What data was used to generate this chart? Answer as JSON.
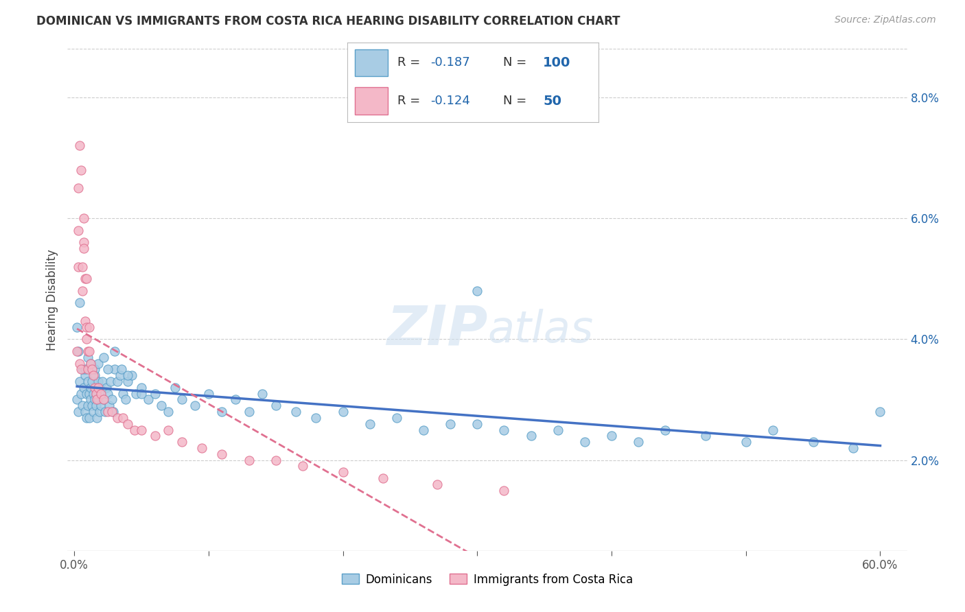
{
  "title": "DOMINICAN VS IMMIGRANTS FROM COSTA RICA HEARING DISABILITY CORRELATION CHART",
  "source": "Source: ZipAtlas.com",
  "ylabel": "Hearing Disability",
  "dominicans_label": "Dominicans",
  "immigrants_label": "Immigrants from Costa Rica",
  "xlim": [
    -0.005,
    0.62
  ],
  "ylim": [
    0.005,
    0.088
  ],
  "yticks": [
    0.02,
    0.04,
    0.06,
    0.08
  ],
  "color_blue_fill": "#a8cce4",
  "color_blue_edge": "#5a9fc8",
  "color_blue_line": "#4472c4",
  "color_pink_fill": "#f4b8c8",
  "color_pink_edge": "#e07090",
  "color_pink_line": "#e07090",
  "color_text_blue": "#2166ac",
  "color_grid": "#cccccc",
  "watermark_color": "#ddeeff",
  "legend_r1": "-0.187",
  "legend_n1": "100",
  "legend_r2": "-0.124",
  "legend_n2": "50",
  "blue_x": [
    0.002,
    0.003,
    0.004,
    0.005,
    0.006,
    0.007,
    0.008,
    0.008,
    0.009,
    0.009,
    0.01,
    0.01,
    0.011,
    0.011,
    0.012,
    0.012,
    0.013,
    0.013,
    0.014,
    0.014,
    0.015,
    0.015,
    0.016,
    0.016,
    0.017,
    0.017,
    0.018,
    0.018,
    0.019,
    0.019,
    0.02,
    0.02,
    0.021,
    0.022,
    0.023,
    0.024,
    0.025,
    0.026,
    0.027,
    0.028,
    0.029,
    0.03,
    0.032,
    0.034,
    0.036,
    0.038,
    0.04,
    0.043,
    0.046,
    0.05,
    0.055,
    0.06,
    0.065,
    0.07,
    0.075,
    0.08,
    0.09,
    0.1,
    0.11,
    0.12,
    0.13,
    0.14,
    0.15,
    0.165,
    0.18,
    0.2,
    0.22,
    0.24,
    0.26,
    0.28,
    0.3,
    0.32,
    0.34,
    0.36,
    0.38,
    0.4,
    0.42,
    0.44,
    0.47,
    0.5,
    0.52,
    0.55,
    0.58,
    0.6,
    0.002,
    0.003,
    0.004,
    0.006,
    0.008,
    0.01,
    0.012,
    0.015,
    0.018,
    0.022,
    0.025,
    0.03,
    0.035,
    0.04,
    0.05,
    0.3
  ],
  "blue_y": [
    0.03,
    0.028,
    0.033,
    0.031,
    0.029,
    0.032,
    0.034,
    0.028,
    0.031,
    0.027,
    0.033,
    0.029,
    0.031,
    0.027,
    0.032,
    0.03,
    0.029,
    0.033,
    0.031,
    0.028,
    0.03,
    0.034,
    0.029,
    0.032,
    0.031,
    0.027,
    0.033,
    0.03,
    0.028,
    0.032,
    0.031,
    0.029,
    0.033,
    0.03,
    0.028,
    0.032,
    0.031,
    0.029,
    0.033,
    0.03,
    0.028,
    0.035,
    0.033,
    0.034,
    0.031,
    0.03,
    0.033,
    0.034,
    0.031,
    0.032,
    0.03,
    0.031,
    0.029,
    0.028,
    0.032,
    0.03,
    0.029,
    0.031,
    0.028,
    0.03,
    0.028,
    0.031,
    0.029,
    0.028,
    0.027,
    0.028,
    0.026,
    0.027,
    0.025,
    0.026,
    0.026,
    0.025,
    0.024,
    0.025,
    0.023,
    0.024,
    0.023,
    0.025,
    0.024,
    0.023,
    0.025,
    0.023,
    0.022,
    0.028,
    0.042,
    0.038,
    0.046,
    0.035,
    0.035,
    0.037,
    0.036,
    0.035,
    0.036,
    0.037,
    0.035,
    0.038,
    0.035,
    0.034,
    0.031,
    0.048
  ],
  "pink_x": [
    0.002,
    0.003,
    0.003,
    0.004,
    0.005,
    0.006,
    0.006,
    0.007,
    0.007,
    0.008,
    0.008,
    0.009,
    0.009,
    0.01,
    0.01,
    0.011,
    0.011,
    0.012,
    0.013,
    0.014,
    0.015,
    0.016,
    0.017,
    0.018,
    0.02,
    0.022,
    0.025,
    0.028,
    0.032,
    0.036,
    0.04,
    0.045,
    0.05,
    0.06,
    0.07,
    0.08,
    0.095,
    0.11,
    0.13,
    0.15,
    0.17,
    0.2,
    0.23,
    0.27,
    0.32,
    0.003,
    0.004,
    0.005,
    0.007,
    0.009
  ],
  "pink_y": [
    0.038,
    0.058,
    0.052,
    0.036,
    0.035,
    0.052,
    0.048,
    0.06,
    0.056,
    0.05,
    0.043,
    0.042,
    0.04,
    0.038,
    0.035,
    0.042,
    0.038,
    0.036,
    0.035,
    0.034,
    0.032,
    0.031,
    0.03,
    0.032,
    0.031,
    0.03,
    0.028,
    0.028,
    0.027,
    0.027,
    0.026,
    0.025,
    0.025,
    0.024,
    0.025,
    0.023,
    0.022,
    0.021,
    0.02,
    0.02,
    0.019,
    0.018,
    0.017,
    0.016,
    0.015,
    0.065,
    0.072,
    0.068,
    0.055,
    0.05
  ]
}
